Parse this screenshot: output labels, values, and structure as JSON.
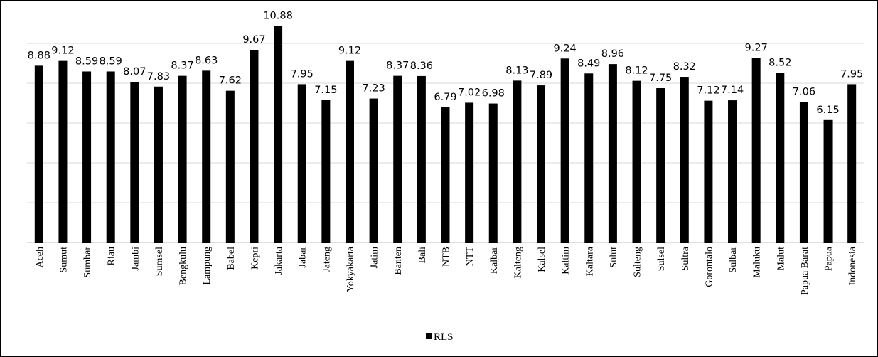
{
  "chart_data": {
    "type": "bar",
    "title": "",
    "xlabel": "",
    "ylabel": "",
    "grid": true,
    "legend_position": "bottom-center",
    "ylim": [
      0,
      11
    ],
    "colors": {
      "bar": "#000000",
      "grid": "#d9d9d9"
    },
    "categories": [
      "Aceh",
      "Sumut",
      "Sumbar",
      "Riau",
      "Jambi",
      "Sumsel",
      "Bengkulu",
      "Lampung",
      "Babel",
      "Kepri",
      "Jakarta",
      "Jabar",
      "Jateng",
      "Yokyakarta",
      "Jatim",
      "Banten",
      "Bali",
      "NTB",
      "NTT",
      "Kalbar",
      "Kalteng",
      "Kalsel",
      "Kaltim",
      "Kaltara",
      "Sulut",
      "Sulteng",
      "Sulsel",
      "Sultra",
      "Gorontalo",
      "Sulbar",
      "Maluku",
      "Malut",
      "Papua Barat",
      "Papua",
      "Indonesia"
    ],
    "series": [
      {
        "name": "RLS",
        "values": [
          8.88,
          9.12,
          8.59,
          8.59,
          8.07,
          7.83,
          8.37,
          8.63,
          7.62,
          9.67,
          10.88,
          7.95,
          7.15,
          9.12,
          7.23,
          8.37,
          8.36,
          6.79,
          7.02,
          6.98,
          8.13,
          7.89,
          9.24,
          8.49,
          8.96,
          8.12,
          7.75,
          8.32,
          7.12,
          7.14,
          9.27,
          8.52,
          7.06,
          6.15,
          7.95
        ],
        "labels": [
          "8.88",
          "9.12",
          "8.59",
          "8.59",
          "8.07",
          "7.83",
          "8.37",
          "8.63",
          "7.62",
          "9.67",
          "10.88",
          "7.95",
          "7.15",
          "9.12",
          "7.23",
          "8.37",
          "8.36",
          "6.79",
          "7.02",
          "6.98",
          "8.13",
          "7.89",
          "9.24",
          "8.49",
          "8.96",
          "8.12",
          "7.75",
          "8.32",
          "7.12",
          "7.14",
          "9.27",
          "8.52",
          "7.06",
          "6.15",
          "7.95"
        ]
      }
    ]
  }
}
